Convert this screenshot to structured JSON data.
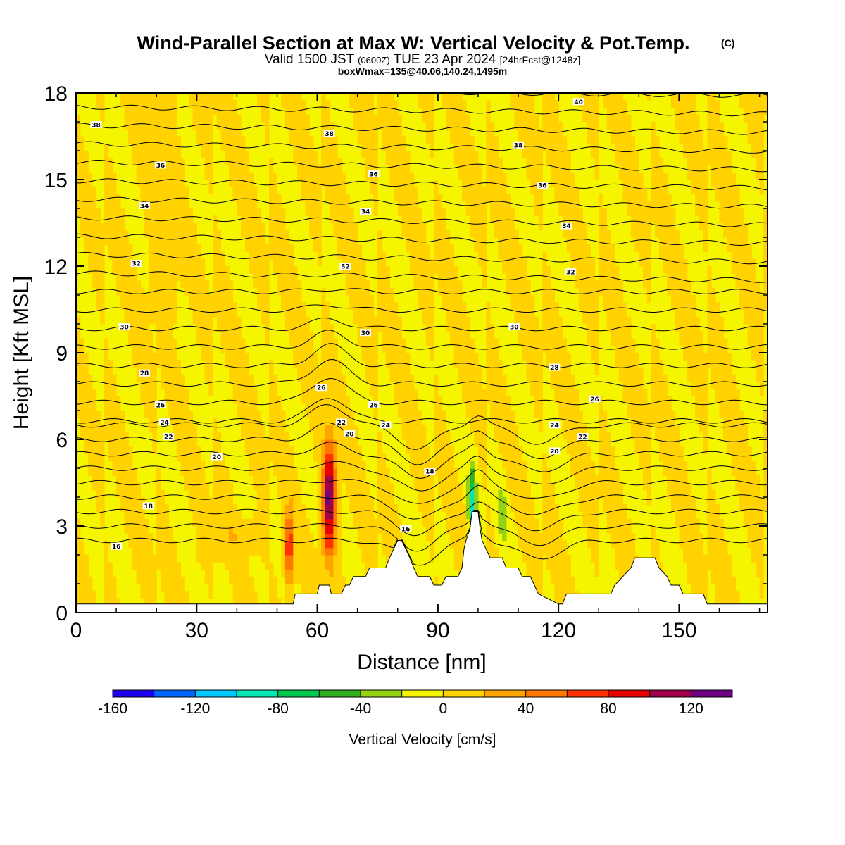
{
  "chart_data": {
    "type": "heatmap",
    "title": "Wind-Parallel Section at Max W: Vertical Velocity & Pot.Temp.",
    "title_mark": "(C)",
    "subtitle_a": "Valid 1500 JST",
    "subtitle_b": "(0600Z)",
    "subtitle_c": "TUE 23 Apr 2024",
    "subtitle_d": "[24hrFcst@1248z]",
    "subtitle2": "boxWmax=135@40.06,140.24,1495m",
    "xlabel": "Distance [nm]",
    "ylabel": "Height [Kft MSL]",
    "xlim": [
      0,
      172
    ],
    "ylim": [
      0,
      18
    ],
    "xticks": [
      0,
      30,
      60,
      90,
      120,
      150
    ],
    "yticks": [
      0,
      3,
      6,
      9,
      12,
      15,
      18
    ],
    "colorbar": {
      "label": "Vertical Velocity [cm/s]",
      "min": -160,
      "max": 140,
      "step": 20,
      "tick_values": [
        -160,
        -120,
        -80,
        -40,
        0,
        40,
        80,
        120
      ],
      "tick_labels": [
        "-160",
        "-120",
        "-80",
        "-40",
        "0",
        "40",
        "80",
        "120"
      ],
      "colors": [
        "#1e00f0",
        "#0064ff",
        "#00c8ff",
        "#00e6b4",
        "#00c850",
        "#30b020",
        "#96d214",
        "#f5f500",
        "#ffd200",
        "#ffa500",
        "#ff7800",
        "#ff3200",
        "#e60000",
        "#a0004b",
        "#6e0082"
      ]
    },
    "background_color": "#f5f500",
    "terrain_color": "#ffffff",
    "theta_contours": [
      {
        "value": 16,
        "label_at": [
          [
            10,
            2.3
          ],
          [
            82,
            2.9
          ]
        ]
      },
      {
        "value": 18,
        "label_at": [
          [
            18,
            3.7
          ],
          [
            88,
            4.9
          ]
        ]
      },
      {
        "value": 20,
        "label_at": [
          [
            35,
            5.4
          ],
          [
            68,
            6.2
          ],
          [
            119,
            5.6
          ]
        ]
      },
      {
        "value": 22,
        "label_at": [
          [
            23,
            6.1
          ],
          [
            66,
            6.6
          ],
          [
            126,
            6.1
          ]
        ]
      },
      {
        "value": 24,
        "label_at": [
          [
            22,
            6.6
          ],
          [
            77,
            6.5
          ],
          [
            119,
            6.5
          ]
        ]
      },
      {
        "value": 26,
        "label_at": [
          [
            21,
            7.2
          ],
          [
            61,
            7.8
          ],
          [
            74,
            7.2
          ],
          [
            129,
            7.4
          ]
        ]
      },
      {
        "value": 28,
        "label_at": [
          [
            17,
            8.3
          ],
          [
            119,
            8.5
          ]
        ]
      },
      {
        "value": 30,
        "label_at": [
          [
            12,
            9.9
          ],
          [
            72,
            9.7
          ],
          [
            109,
            9.9
          ]
        ]
      },
      {
        "value": 32,
        "label_at": [
          [
            15,
            12.1
          ],
          [
            67,
            12.0
          ],
          [
            123,
            11.8
          ]
        ]
      },
      {
        "value": 34,
        "label_at": [
          [
            17,
            14.1
          ],
          [
            72,
            13.9
          ],
          [
            122,
            13.4
          ]
        ]
      },
      {
        "value": 36,
        "label_at": [
          [
            21,
            15.5
          ],
          [
            74,
            15.2
          ],
          [
            116,
            14.8
          ]
        ]
      },
      {
        "value": 38,
        "label_at": [
          [
            5,
            16.9
          ],
          [
            63,
            16.6
          ],
          [
            110,
            16.2
          ]
        ]
      },
      {
        "value": 40,
        "label_at": [
          [
            125,
            17.7
          ]
        ]
      }
    ],
    "vertical_velocity_features": [
      {
        "name": "updraft-core",
        "x": 63,
        "y": 4.0,
        "max": 135,
        "sx": 1.6,
        "sy": 1.9
      },
      {
        "name": "updraft-west",
        "x": 53,
        "y": 2.2,
        "max": 85,
        "sx": 1.0,
        "sy": 1.3
      },
      {
        "name": "downdraft-ridge",
        "x": 98.5,
        "y": 3.8,
        "max": -90,
        "sx": 0.9,
        "sy": 1.1
      },
      {
        "name": "downdraft-east",
        "x": 106,
        "y": 3.4,
        "max": -40,
        "sx": 0.8,
        "sy": 1.0
      }
    ]
  }
}
